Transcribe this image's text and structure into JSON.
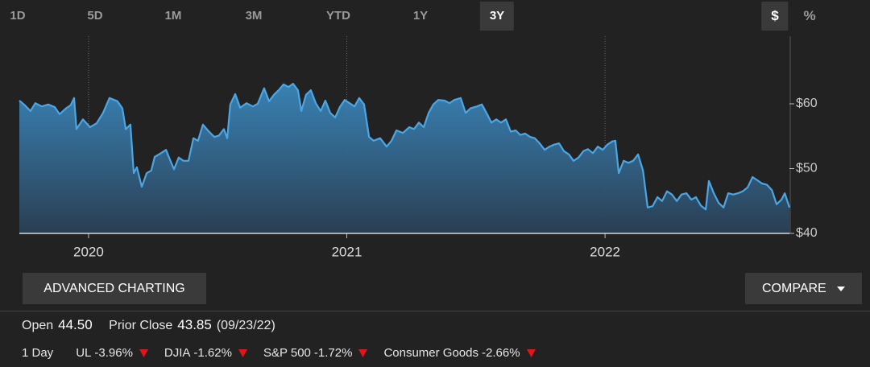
{
  "tabs": [
    "1D",
    "5D",
    "1M",
    "3M",
    "YTD",
    "1Y",
    "3Y"
  ],
  "selected_tab": 6,
  "units": [
    "$",
    "%"
  ],
  "selected_unit": 0,
  "chart_data": {
    "type": "area",
    "color": "#4aa6e4",
    "area_color": "#3a86bb",
    "x": [
      2019.732,
      2019.75,
      2019.775,
      2019.794,
      2019.819,
      2019.844,
      2019.869,
      2019.888,
      2019.913,
      2019.931,
      2019.944,
      2019.953,
      2019.978,
      2020.006,
      2020.031,
      2020.056,
      2020.081,
      2020.112,
      2020.131,
      2020.144,
      2020.162,
      2020.175,
      2020.187,
      2020.206,
      2020.225,
      2020.243,
      2020.256,
      2020.281,
      2020.3,
      2020.312,
      2020.331,
      2020.349,
      2020.368,
      2020.387,
      2020.406,
      2020.424,
      2020.443,
      2020.462,
      2020.487,
      2020.505,
      2020.524,
      2020.537,
      2020.549,
      2020.568,
      2020.587,
      2020.612,
      2020.636,
      2020.655,
      2020.68,
      2020.699,
      2020.718,
      2020.736,
      2020.755,
      2020.774,
      2020.792,
      2020.811,
      2020.824,
      2020.842,
      2020.861,
      2020.88,
      2020.899,
      2020.917,
      2020.936,
      2020.955,
      2020.973,
      2020.992,
      2021.011,
      2021.03,
      2021.048,
      2021.067,
      2021.086,
      2021.104,
      2021.129,
      2021.154,
      2021.173,
      2021.192,
      2021.217,
      2021.242,
      2021.26,
      2021.279,
      2021.298,
      2021.317,
      2021.335,
      2021.354,
      2021.379,
      2021.398,
      2021.416,
      2021.441,
      2021.46,
      2021.479,
      2021.504,
      2021.523,
      2021.541,
      2021.56,
      2021.579,
      2021.597,
      2021.616,
      2021.635,
      2021.654,
      2021.672,
      2021.691,
      2021.71,
      2021.728,
      2021.747,
      2021.766,
      2021.785,
      2021.803,
      2021.822,
      2021.841,
      2021.86,
      2021.878,
      2021.897,
      2021.916,
      2021.934,
      2021.953,
      2021.972,
      2021.991,
      2022.009,
      2022.028,
      2022.04,
      2022.053,
      2022.072,
      2022.09,
      2022.109,
      2022.128,
      2022.147,
      2022.165,
      2022.184,
      2022.203,
      2022.221,
      2022.24,
      2022.259,
      2022.278,
      2022.296,
      2022.315,
      2022.334,
      2022.352,
      2022.371,
      2022.39,
      2022.402,
      2022.421,
      2022.44,
      2022.459,
      2022.477,
      2022.496,
      2022.515,
      2022.533,
      2022.552,
      2022.571,
      2022.59,
      2022.608,
      2022.627,
      2022.646,
      2022.664,
      2022.683,
      2022.696,
      2022.714
    ],
    "values": [
      60.5,
      59.9,
      58.9,
      60.1,
      59.6,
      59.9,
      59.5,
      58.4,
      59.3,
      59.8,
      60.9,
      56.1,
      57.6,
      56.4,
      57.0,
      58.6,
      60.9,
      60.4,
      59.3,
      56.1,
      56.8,
      49.3,
      50.2,
      47.2,
      49.3,
      49.7,
      51.8,
      52.4,
      52.9,
      51.7,
      49.9,
      51.7,
      51.2,
      51.2,
      54.7,
      54.3,
      56.8,
      55.9,
      54.9,
      55.1,
      56.1,
      54.7,
      59.9,
      61.5,
      59.4,
      60.1,
      59.6,
      60.0,
      62.4,
      60.4,
      61.4,
      62.1,
      63.0,
      62.6,
      63.1,
      62.1,
      58.9,
      61.4,
      62.1,
      60.1,
      58.9,
      60.5,
      58.6,
      57.9,
      59.5,
      60.6,
      60.1,
      59.6,
      60.9,
      59.9,
      54.9,
      54.3,
      54.7,
      53.4,
      54.3,
      55.9,
      55.5,
      56.4,
      56.1,
      57.1,
      56.4,
      58.6,
      59.9,
      60.6,
      60.5,
      60.1,
      60.6,
      60.9,
      58.6,
      59.3,
      59.6,
      59.9,
      58.6,
      57.1,
      57.6,
      57.1,
      57.6,
      55.7,
      55.9,
      55.2,
      55.4,
      54.9,
      54.7,
      53.9,
      52.9,
      53.4,
      53.7,
      53.9,
      52.7,
      52.2,
      51.2,
      51.7,
      52.7,
      53.0,
      52.4,
      53.4,
      52.9,
      53.7,
      54.2,
      54.3,
      49.3,
      51.2,
      50.9,
      51.2,
      52.2,
      49.7,
      44.0,
      44.2,
      45.6,
      45.0,
      46.5,
      46.0,
      45.0,
      46.0,
      46.2,
      45.2,
      45.6,
      44.3,
      43.7,
      48.1,
      46.2,
      44.7,
      44.0,
      46.2,
      46.0,
      46.2,
      46.5,
      47.1,
      48.7,
      48.2,
      47.7,
      47.5,
      46.7,
      44.5,
      45.2,
      46.2,
      44.0
    ],
    "xlim": [
      2019.732,
      2022.714
    ],
    "xticks": [
      2020,
      2021,
      2022
    ],
    "ylim": [
      40,
      70
    ],
    "yticks": [
      {
        "value": 40,
        "label": "$40"
      },
      {
        "value": 50,
        "label": "$50"
      },
      {
        "value": 60,
        "label": "$60"
      }
    ],
    "grid": "x"
  },
  "buttons": {
    "advanced": "ADVANCED CHARTING",
    "compare": "COMPARE"
  },
  "quote": {
    "open_label": "Open",
    "open": "44.50",
    "prior_close_label": "Prior Close",
    "prior_close": "43.85",
    "prior_close_date": "(09/23/22)"
  },
  "changes": {
    "label": "1 Day",
    "items": [
      {
        "name": "UL",
        "change": "-3.96%"
      },
      {
        "name": "DJIA",
        "change": "-1.62%"
      },
      {
        "name": "S&P 500",
        "change": "-1.72%"
      },
      {
        "name": "Consumer Goods",
        "change": "-2.66%"
      }
    ]
  }
}
